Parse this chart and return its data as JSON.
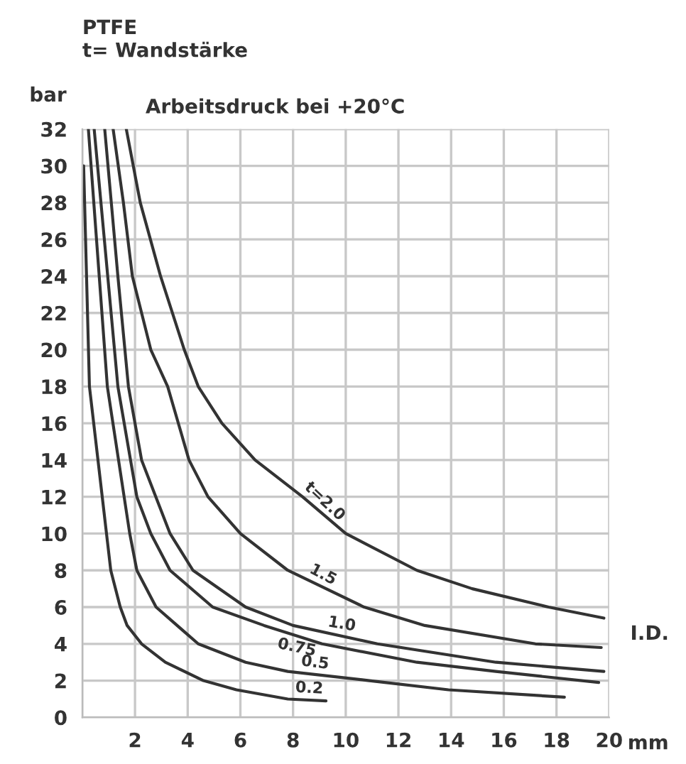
{
  "chart_data": {
    "type": "line",
    "title": "PTFE",
    "subtitle": "t= Wandstärke",
    "xlabel": "mm",
    "ylabel": "bar",
    "annotations": [
      "Arbeitsdruck bei +20°C",
      "I.D."
    ],
    "xlim": [
      0,
      20
    ],
    "ylim": [
      0,
      32
    ],
    "xticks": [
      {
        "value": 0,
        "label": null
      },
      2,
      4,
      6,
      8,
      10,
      12,
      14,
      16,
      18,
      20
    ],
    "yticks": [
      0,
      2,
      4,
      6,
      8,
      10,
      12,
      14,
      16,
      18,
      20,
      22,
      24,
      26,
      28,
      30,
      32
    ],
    "grid": true,
    "legend": false,
    "marker": "none",
    "line_style": "solid",
    "series": [
      {
        "name": "t=2.0",
        "color": "#333333",
        "x": [
          1.67,
          2.2,
          2.97,
          3.87,
          4.4,
          5.3,
          6.56,
          8.36,
          10.0,
          12.7,
          14.8,
          17.7,
          19.8
        ],
        "values": [
          32,
          28,
          24,
          20,
          18,
          16,
          14,
          12,
          10,
          8,
          7,
          6,
          5.4
        ]
      },
      {
        "name": "1.5",
        "color": "#333333",
        "x": [
          1.17,
          1.56,
          1.9,
          2.6,
          3.24,
          4.05,
          4.77,
          6.0,
          7.8,
          10.7,
          13.0,
          17.2,
          19.7
        ],
        "values": [
          32,
          28,
          24,
          20,
          18,
          14,
          12,
          10,
          8,
          6,
          5,
          4,
          3.8
        ]
      },
      {
        "name": "1.0",
        "color": "#333333",
        "x": [
          0.85,
          1.1,
          1.35,
          1.75,
          2.25,
          3.33,
          4.2,
          6.2,
          8.0,
          11.2,
          15.7,
          19.8
        ],
        "values": [
          32,
          28,
          24,
          18,
          14,
          10,
          8,
          6,
          5,
          4,
          3,
          2.5
        ]
      },
      {
        "name": "0.75",
        "color": "#333333",
        "x": [
          0.45,
          1.35,
          2.07,
          2.6,
          3.33,
          4.95,
          6.9,
          9.1,
          12.7,
          15.7,
          19.6
        ],
        "values": [
          32,
          18,
          12,
          10,
          8,
          6,
          5,
          4,
          3,
          2.5,
          1.9
        ]
      },
      {
        "name": "0.5",
        "color": "#333333",
        "x": [
          0.23,
          0.95,
          1.8,
          2.07,
          2.8,
          4.4,
          6.2,
          7.8,
          10.9,
          13.9,
          18.3
        ],
        "values": [
          32,
          18,
          10,
          8,
          6,
          4,
          3,
          2.5,
          2,
          1.5,
          1.1
        ]
      },
      {
        "name": "0.2",
        "color": "#333333",
        "x": [
          0.05,
          0.27,
          1.08,
          1.44,
          1.7,
          2.25,
          3.15,
          4.6,
          5.85,
          7.8,
          9.25
        ],
        "values": [
          30,
          18,
          8,
          6,
          5,
          4,
          3,
          2,
          1.5,
          1,
          0.9
        ]
      }
    ]
  }
}
